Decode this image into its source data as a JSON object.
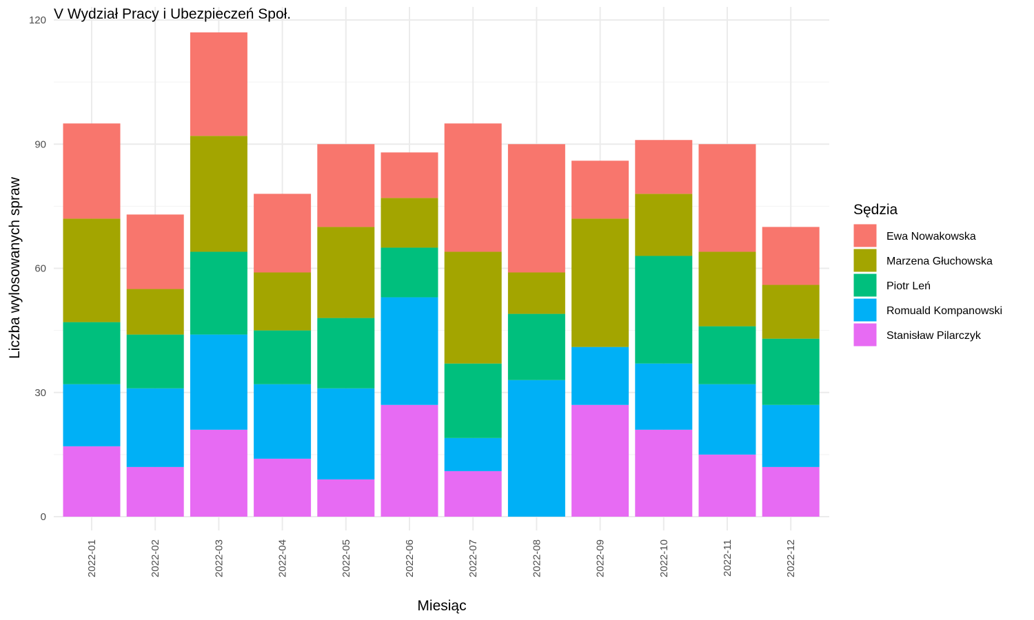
{
  "chart_data": {
    "type": "bar",
    "stacked": true,
    "title": "V Wydział Pracy i Ubezpieczeń Społ.",
    "xlabel": "Miesiąc",
    "ylabel": "Liczba wylosowanych spraw",
    "ylim": [
      0,
      120
    ],
    "yticks": [
      0,
      30,
      60,
      90,
      120
    ],
    "grid": true,
    "legend_title": "Sędzia",
    "legend_position": "right",
    "categories": [
      "2022-01",
      "2022-02",
      "2022-03",
      "2022-04",
      "2022-05",
      "2022-06",
      "2022-07",
      "2022-08",
      "2022-09",
      "2022-10",
      "2022-11",
      "2022-12"
    ],
    "series": [
      {
        "name": "Ewa Nowakowska",
        "color": "#F8766D",
        "values": [
          23,
          18,
          25,
          19,
          20,
          11,
          31,
          31,
          14,
          13,
          26,
          14
        ]
      },
      {
        "name": "Marzena Głuchowska",
        "color": "#A3A500",
        "values": [
          25,
          11,
          28,
          14,
          22,
          12,
          27,
          10,
          31,
          15,
          18,
          13
        ]
      },
      {
        "name": "Piotr Leń",
        "color": "#00BF7D",
        "values": [
          15,
          13,
          20,
          13,
          17,
          12,
          18,
          16,
          0,
          26,
          14,
          16
        ]
      },
      {
        "name": "Romuald Kompanowski",
        "color": "#00B0F6",
        "values": [
          15,
          19,
          23,
          18,
          22,
          26,
          8,
          33,
          14,
          16,
          17,
          15
        ]
      },
      {
        "name": "Stanisław Pilarczyk",
        "color": "#E76BF3",
        "values": [
          17,
          12,
          21,
          14,
          9,
          27,
          11,
          0,
          27,
          21,
          15,
          12
        ]
      }
    ]
  }
}
